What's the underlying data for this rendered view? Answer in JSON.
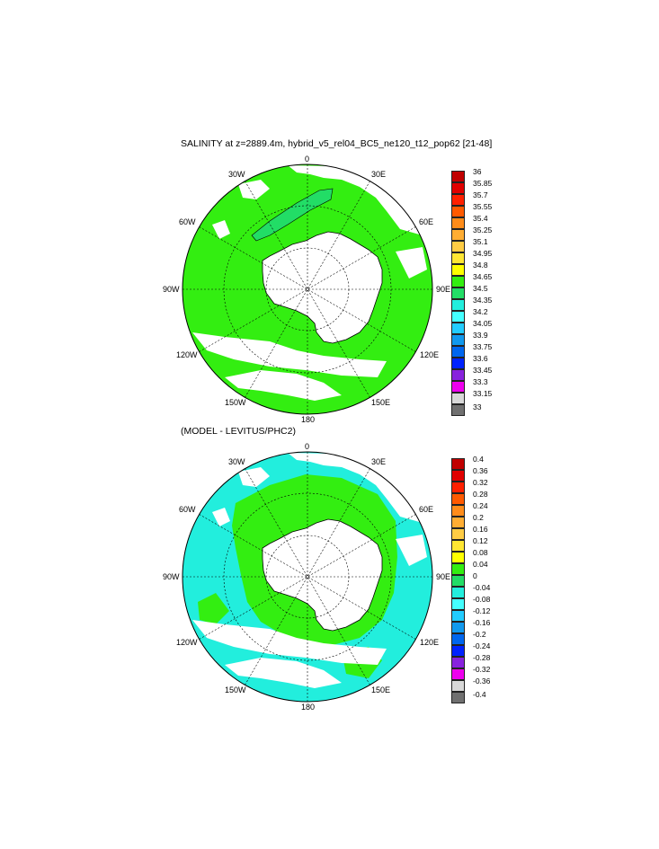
{
  "panels": [
    {
      "title": "SALINITY at z=2889.4m, hybrid_v5_rel04_BC5_ne120_t12_pop62 [21-48]",
      "dominant_fill": "#33ee11",
      "secondary_fill": "#22dd66",
      "colorbar": {
        "labels": [
          "36",
          "35.85",
          "35.7",
          "35.55",
          "35.4",
          "35.25",
          "35.1",
          "34.95",
          "34.8",
          "34.65",
          "34.5",
          "34.35",
          "34.2",
          "34.05",
          "33.9",
          "33.75",
          "33.6",
          "33.45",
          "33.3",
          "33.15",
          "33"
        ]
      }
    },
    {
      "title": "(MODEL - LEVITUS/PHC2)",
      "dominant_fill": "#22eedd",
      "secondary_fill": "#33ee11",
      "colorbar": {
        "labels": [
          "0.4",
          "0.36",
          "0.32",
          "0.28",
          "0.24",
          "0.2",
          "0.16",
          "0.12",
          "0.08",
          "0.04",
          "0",
          "-0.04",
          "-0.08",
          "-0.12",
          "-0.16",
          "-0.2",
          "-0.24",
          "-0.28",
          "-0.32",
          "-0.36",
          "-0.4"
        ]
      }
    }
  ],
  "map_labels": {
    "n0": "0",
    "n30e": "30E",
    "n60e": "60E",
    "n90e": "90E",
    "n120e": "120E",
    "n150e": "150E",
    "n180": "180",
    "n150w": "150W",
    "n120w": "120W",
    "n90w": "90W",
    "n60w": "60W",
    "n30w": "30W"
  },
  "colors": {
    "box_colors": [
      "#c00000",
      "#e00000",
      "#ff2000",
      "#ff5a00",
      "#ff8c1a",
      "#ffad33",
      "#ffcc44",
      "#ffe633",
      "#ffff00",
      "#33ee11",
      "#22dd66",
      "#22eedd",
      "#44ffff",
      "#22ccff",
      "#1199ee",
      "#0066ee",
      "#0022ff",
      "#8822dd",
      "#ee00ee",
      "#d8d8d8",
      "#707070"
    ]
  }
}
